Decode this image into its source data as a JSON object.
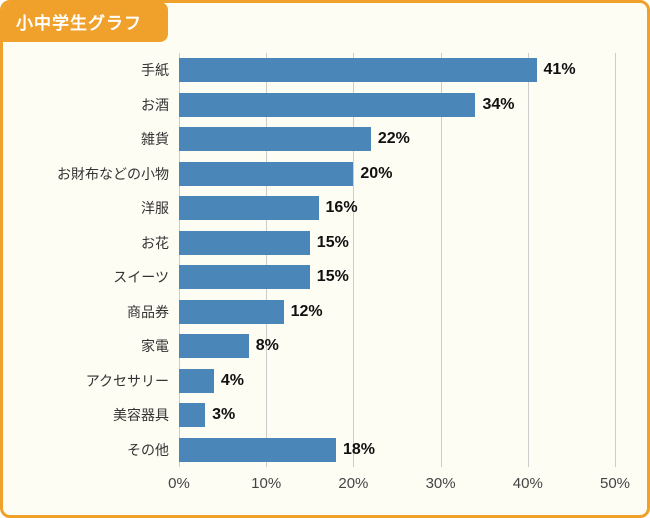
{
  "header": {
    "title": "小中学生グラフ"
  },
  "colors": {
    "accent_orange": "#f0a12b",
    "bar_blue": "#4a86b8",
    "grid": "#cccccc",
    "background": "#fefdf4"
  },
  "chart_data": {
    "type": "bar",
    "orientation": "horizontal",
    "title": "小中学生グラフ",
    "categories": [
      "手紙",
      "お酒",
      "雑貨",
      "お財布などの小物",
      "洋服",
      "お花",
      "スイーツ",
      "商品券",
      "家電",
      "アクセサリー",
      "美容器具",
      "その他"
    ],
    "values": [
      41,
      34,
      22,
      20,
      16,
      15,
      15,
      12,
      8,
      4,
      3,
      18
    ],
    "value_labels": [
      "41%",
      "34%",
      "22%",
      "20%",
      "16%",
      "15%",
      "15%",
      "12%",
      "8%",
      "4%",
      "3%",
      "18%"
    ],
    "xlabel": "",
    "ylabel": "",
    "xlim": [
      0,
      50
    ],
    "x_ticks": [
      0,
      10,
      20,
      30,
      40,
      50
    ],
    "x_tick_labels": [
      "0%",
      "10%",
      "20%",
      "30%",
      "40%",
      "50%"
    ],
    "grid": true,
    "legend": false,
    "bar_color": "#4a86b8"
  }
}
